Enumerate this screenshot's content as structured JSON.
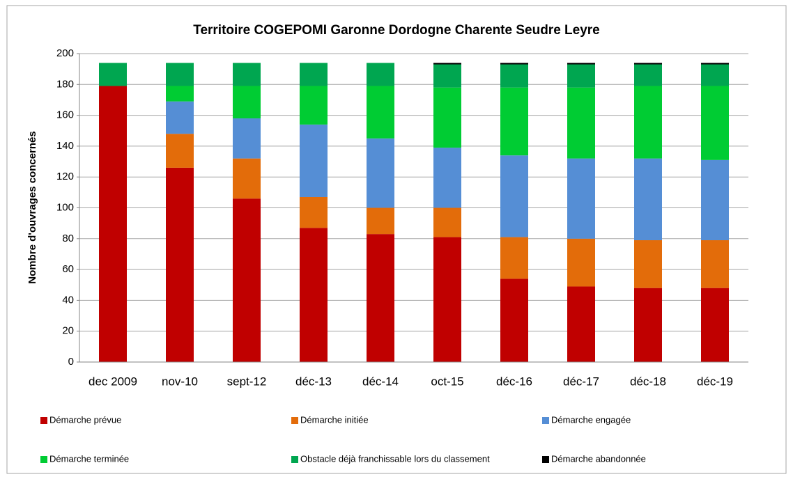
{
  "chart_data": {
    "type": "stacked_bar",
    "title": "Territoire COGEPOMI Garonne Dordogne Charente Seudre Leyre",
    "y_label": "Nombre d'ouvrages concernés",
    "categories": [
      "dec 2009",
      "nov-10",
      "sept-12",
      "déc-13",
      "déc-14",
      "oct-15",
      "déc-16",
      "déc-17",
      "déc-18",
      "déc-19"
    ],
    "series": [
      {
        "name": "Démarche prévue",
        "color": "#c00000",
        "values": [
          179,
          126,
          106,
          87,
          83,
          81,
          54,
          49,
          48,
          48
        ]
      },
      {
        "name": "Démarche initiée",
        "color": "#e36c0a",
        "values": [
          0,
          22,
          26,
          20,
          17,
          19,
          27,
          31,
          31,
          31
        ]
      },
      {
        "name": "Démarche engagée",
        "color": "#558ed5",
        "values": [
          0,
          21,
          26,
          47,
          45,
          39,
          53,
          52,
          53,
          52
        ]
      },
      {
        "name": "Démarche terminée",
        "color": "#00cc33",
        "values": [
          0,
          10,
          21,
          25,
          34,
          39,
          44,
          46,
          47,
          48
        ]
      },
      {
        "name": "Obstacle déjà franchissable lors du classement",
        "color": "#00a650",
        "values": [
          15,
          15,
          15,
          15,
          15,
          15,
          15,
          15,
          14,
          14
        ]
      },
      {
        "name": "Démarche abandonnée",
        "color": "#000000",
        "values": [
          0,
          0,
          0,
          0,
          0,
          1,
          1,
          1,
          1,
          1
        ]
      }
    ],
    "ylim": [
      0,
      200
    ],
    "yticks": [
      0,
      20,
      40,
      60,
      80,
      100,
      120,
      140,
      160,
      180,
      200
    ],
    "grid": true,
    "legend": "bottom"
  }
}
